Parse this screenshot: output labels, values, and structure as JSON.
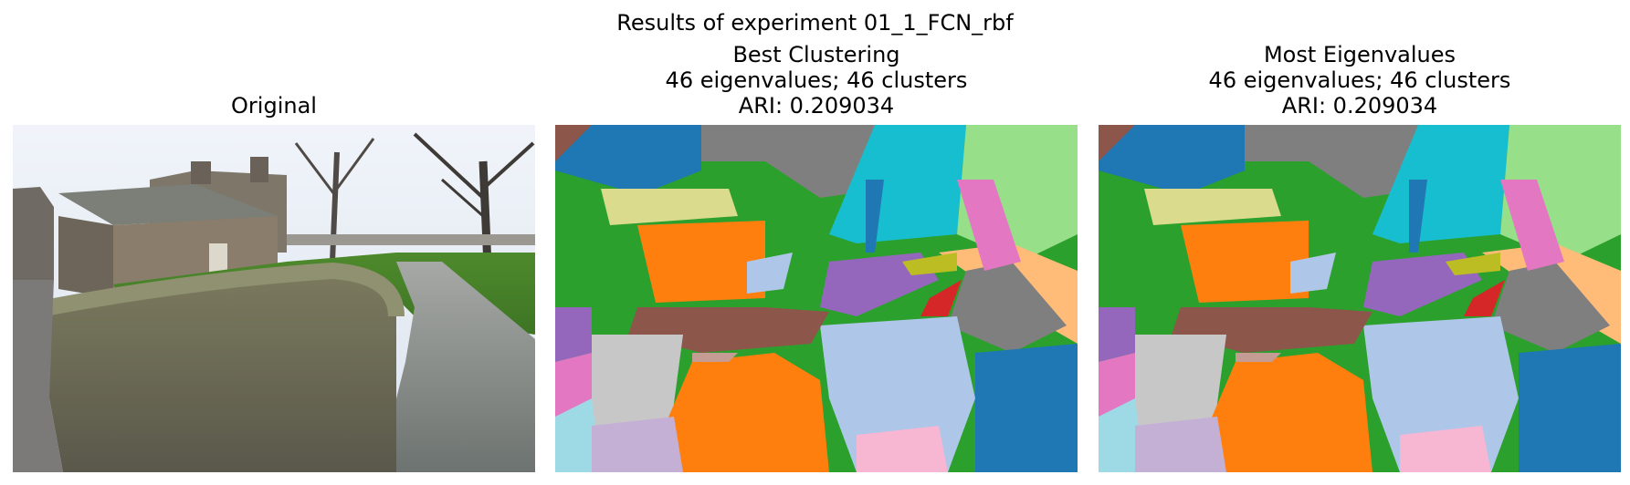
{
  "figure": {
    "suptitle": "Results of experiment 01_1_FCN_rbf"
  },
  "panels": [
    {
      "title_lines": [
        "Original"
      ],
      "image_description_name": "photo-original",
      "icon": "photo-icon"
    },
    {
      "title_lines": [
        "Best Clustering",
        "46 eigenvalues; 46 clusters",
        "ARI: 0.209034"
      ],
      "image_description_name": "segmentation-map",
      "icon": "segmentation-icon"
    },
    {
      "title_lines": [
        "Most Eigenvalues",
        "46 eigenvalues; 46 clusters",
        "ARI: 0.209034"
      ],
      "image_description_name": "segmentation-map",
      "icon": "segmentation-icon"
    }
  ],
  "palette": {
    "blue": "#1f77b4",
    "orange": "#ff7f0e",
    "green": "#2ca02c",
    "red": "#d62728",
    "purple": "#9467bd",
    "brown": "#8c564b",
    "pink": "#e377c2",
    "gray": "#7f7f7f",
    "olive": "#bcbd22",
    "cyan": "#17becf",
    "light_blue": "#aec7e8",
    "light_orange": "#ffbb78",
    "light_green": "#98df8a",
    "light_pink": "#f7b6d2",
    "light_gray": "#c7c7c7",
    "khaki": "#dbdb8d",
    "light_cyan": "#9edae5",
    "light_purple": "#c5b0d5",
    "tan": "#c49c94"
  }
}
